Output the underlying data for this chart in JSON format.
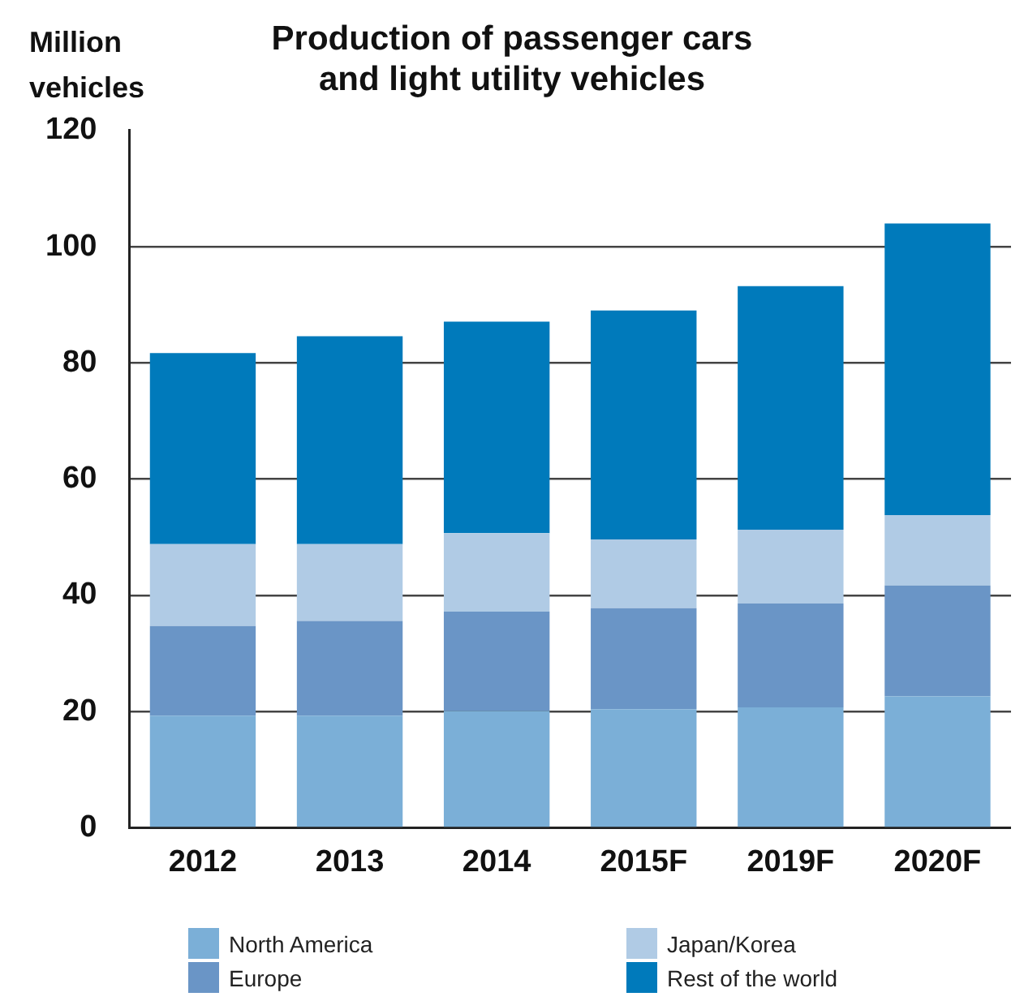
{
  "chart_data": {
    "type": "bar",
    "stacked": true,
    "title": "Production of passenger cars\nand light utility vehicles",
    "ylabel": "Million\nvehicles",
    "categories": [
      "2012",
      "2013",
      "2014",
      "2015F",
      "2019F",
      "2020F"
    ],
    "series": [
      {
        "name": "North America",
        "color": "#7bafd7",
        "values": [
          19.3,
          19.3,
          20.1,
          20.4,
          20.7,
          22.6
        ]
      },
      {
        "name": "Europe",
        "color": "#6a95c6",
        "values": [
          15.4,
          16.3,
          17.1,
          17.4,
          17.9,
          19.1
        ]
      },
      {
        "name": "Japan/Korea",
        "color": "#b0cbe5",
        "values": [
          14.1,
          13.2,
          13.5,
          11.8,
          12.7,
          12.1
        ]
      },
      {
        "name": "Rest of the world",
        "color": "#007abb",
        "values": [
          32.9,
          35.8,
          36.4,
          39.4,
          41.9,
          50.2
        ]
      }
    ],
    "ylim": [
      0,
      120
    ],
    "yticks": [
      0,
      20,
      40,
      60,
      80,
      100,
      120
    ],
    "grid": "y",
    "legend": "bottom"
  }
}
